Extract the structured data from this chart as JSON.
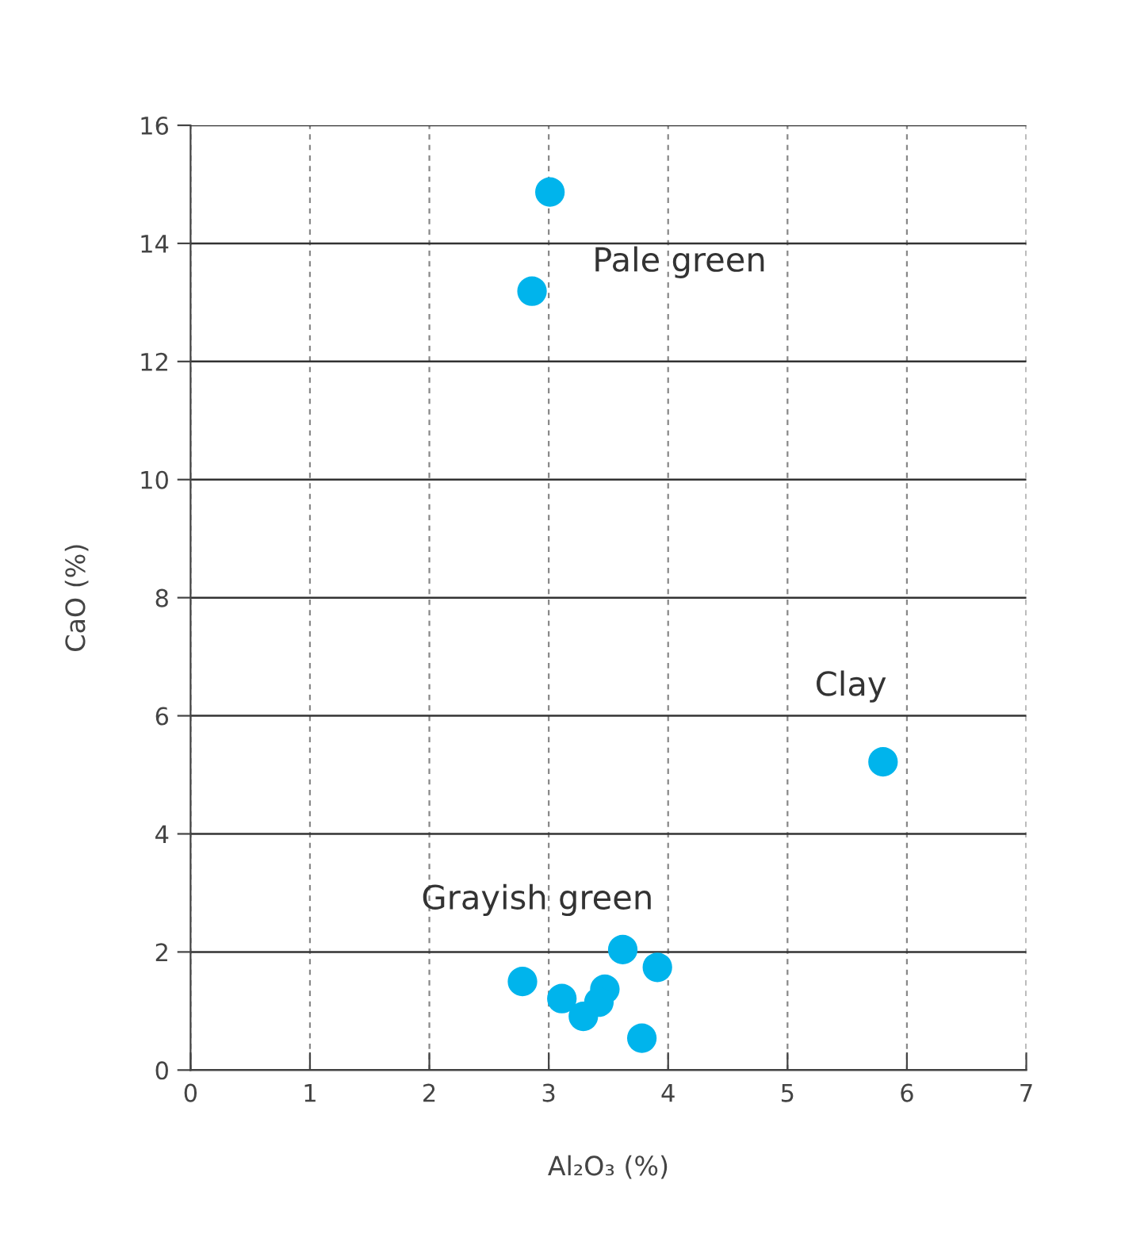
{
  "chart_data": {
    "type": "scatter",
    "xlabel": "Al₂O₃ (%)",
    "ylabel": "CaO (%)",
    "x": [
      3.01,
      2.86,
      5.8,
      3.62,
      3.91,
      2.78,
      3.11,
      3.47,
      3.42,
      3.29,
      3.78
    ],
    "series": [
      {
        "color": "#00b4ec",
        "values": [
          14.87,
          13.19,
          5.22,
          2.04,
          1.74,
          1.5,
          1.21,
          1.37,
          1.15,
          0.91,
          0.54
        ]
      }
    ],
    "xlim": [
      0,
      7
    ],
    "xticks": [
      0,
      1,
      2,
      3,
      4,
      5,
      6,
      7
    ],
    "ylim": [
      0,
      16
    ],
    "yticks": [
      0,
      2,
      4,
      6,
      8,
      10,
      12,
      14,
      16
    ],
    "grid": true,
    "marker": "circle",
    "annotations": [
      "Pale green",
      "Clay",
      "Grayish green"
    ]
  }
}
